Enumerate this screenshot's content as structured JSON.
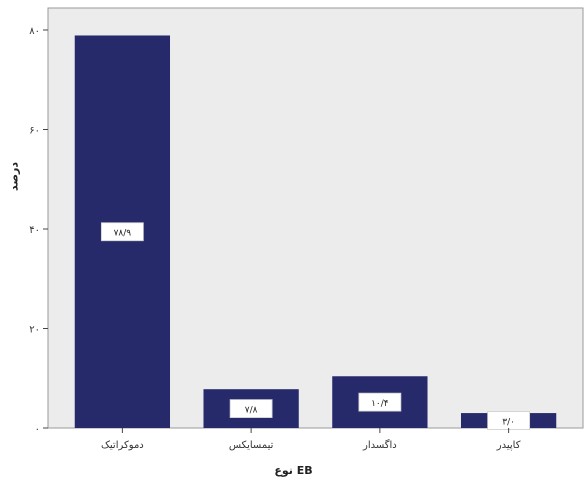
{
  "chart_data": {
    "type": "bar",
    "title": "",
    "xlabel": "نوع EB",
    "ylabel": "درصد",
    "ylim": [
      0,
      80
    ],
    "yticks": [
      "۰",
      "۲۰",
      "۴۰",
      "۶۰",
      "۸۰"
    ],
    "categories": [
      "دموکراتیک",
      "تیمسایکس",
      "داگسدار",
      "کاپیدر"
    ],
    "values": [
      78.9,
      7.8,
      10.4,
      3.0
    ],
    "data_labels": [
      "۷۸/۹",
      "۷/۸",
      "۱۰/۴",
      "۳/۰"
    ],
    "bar_color": "#262a6b",
    "plot_bg": "#ececec",
    "grid": false,
    "legend": "none"
  }
}
